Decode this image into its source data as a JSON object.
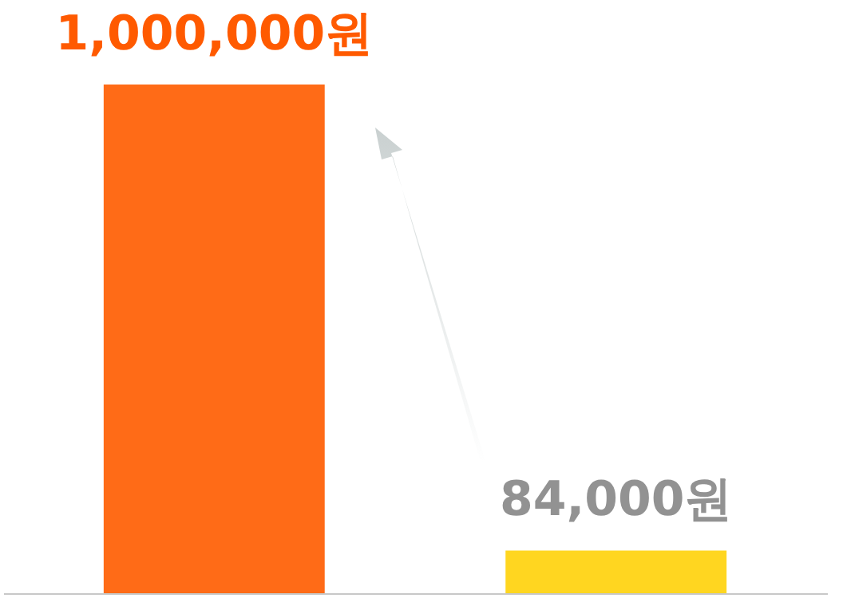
{
  "chart_data": {
    "type": "bar",
    "categories": [
      null,
      null
    ],
    "values": [
      1000000,
      84000
    ],
    "colors": [
      "#ff6b17",
      "#ffd620"
    ],
    "value_labels": [
      "1,000,000원",
      "84,000원"
    ]
  }
}
